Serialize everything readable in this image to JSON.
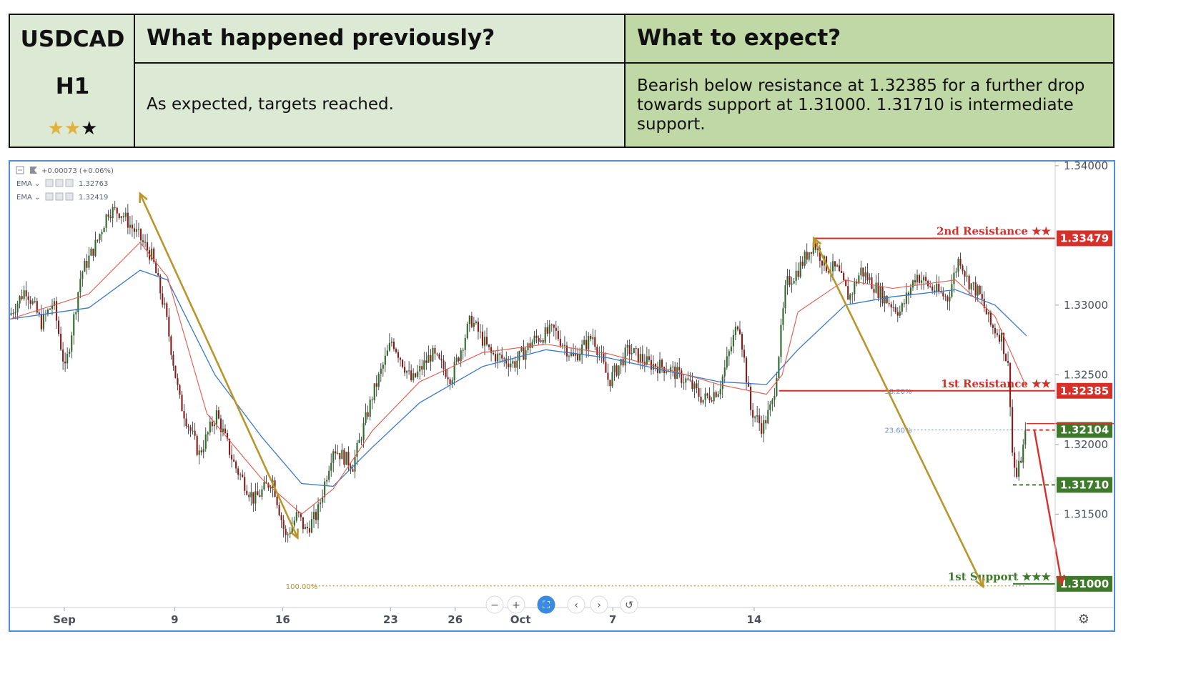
{
  "header": {
    "symbol": "USDCAD",
    "timeframe": "H1",
    "rating_filled": 2,
    "rating_total": 3,
    "previous_title": "What happened previously?",
    "expect_title": "What to expect?",
    "previous_text": "As expected, targets reached.",
    "expect_text": "Bearish below resistance at 1.32385 for a further drop towards support at 1.31000. 1.31710 is intermediate support."
  },
  "legend": {
    "change": "+0.00073 (+0.06%)",
    "ema1_label": "EMA",
    "ema1_value": "1.32763",
    "ema2_label": "EMA",
    "ema2_value": "1.32419"
  },
  "colors": {
    "bull": "#2e6b2a",
    "bear": "#8b1a1a",
    "ema_slow": "#3a78c8",
    "ema_fast": "#e05a4a",
    "resistance": "#d6302a",
    "support": "#3d7a2a",
    "trend_arrow": "#b8962a",
    "fib_blue": "#6a8fc8",
    "border": "#4e8fd8"
  },
  "chart_data": {
    "type": "candlestick",
    "symbol": "USDCAD",
    "timeframe": "H1",
    "ylim": [
      1.3083,
      1.3403
    ],
    "y_ticks": [
      "1.34000",
      "1.33000",
      "1.32500",
      "1.32000",
      "1.31500"
    ],
    "x_ticks": [
      "Sep",
      "9",
      "16",
      "23",
      "26",
      "Oct",
      "7",
      "14"
    ],
    "price_path": [
      [
        0,
        1.3293
      ],
      [
        0.02,
        1.3312
      ],
      [
        0.04,
        1.3287
      ],
      [
        0.055,
        1.3302
      ],
      [
        0.07,
        1.3253
      ],
      [
        0.09,
        1.3322
      ],
      [
        0.11,
        1.3345
      ],
      [
        0.125,
        1.3368
      ],
      [
        0.14,
        1.3367
      ],
      [
        0.165,
        1.3348
      ],
      [
        0.18,
        1.3335
      ],
      [
        0.197,
        1.3295
      ],
      [
        0.215,
        1.3232
      ],
      [
        0.24,
        1.3193
      ],
      [
        0.262,
        1.3222
      ],
      [
        0.285,
        1.3185
      ],
      [
        0.31,
        1.316
      ],
      [
        0.333,
        1.3175
      ],
      [
        0.35,
        1.3133
      ],
      [
        0.365,
        1.315
      ],
      [
        0.375,
        1.3138
      ],
      [
        0.39,
        1.315
      ],
      [
        0.41,
        1.3198
      ],
      [
        0.435,
        1.3185
      ],
      [
        0.46,
        1.3235
      ],
      [
        0.485,
        1.3275
      ],
      [
        0.51,
        1.3245
      ],
      [
        0.535,
        1.3265
      ],
      [
        0.56,
        1.3248
      ],
      [
        0.585,
        1.329
      ],
      [
        0.61,
        1.3265
      ],
      [
        0.64,
        1.3258
      ],
      [
        0.665,
        1.3275
      ],
      [
        0.69,
        1.3282
      ],
      [
        0.715,
        1.3262
      ],
      [
        0.74,
        1.3278
      ],
      [
        0.76,
        1.3245
      ],
      [
        0.785,
        1.3268
      ],
      [
        0.81,
        1.3258
      ],
      [
        0.835,
        1.3255
      ],
      [
        0.86,
        1.3245
      ],
      [
        0.88,
        1.3232
      ],
      [
        0.9,
        1.324
      ],
      [
        0.925,
        1.329
      ],
      [
        0.94,
        1.3225
      ],
      [
        0.955,
        1.3212
      ],
      [
        0.968,
        1.323
      ],
      [
        0.975,
        1.3262
      ],
      [
        0.985,
        1.3315
      ],
      [
        1.0,
        1.3325
      ],
      [
        1.01,
        1.3335
      ],
      [
        1.02,
        1.3345
      ],
      [
        1.035,
        1.3328
      ],
      [
        1.05,
        1.3325
      ],
      [
        1.065,
        1.3305
      ],
      [
        1.08,
        1.3325
      ],
      [
        1.095,
        1.3315
      ],
      [
        1.11,
        1.3305
      ],
      [
        1.13,
        1.3295
      ],
      [
        1.15,
        1.3322
      ],
      [
        1.17,
        1.3312
      ],
      [
        1.19,
        1.3305
      ],
      [
        1.205,
        1.3335
      ],
      [
        1.215,
        1.3318
      ],
      [
        1.23,
        1.3308
      ],
      [
        1.245,
        1.3285
      ],
      [
        1.258,
        1.3278
      ],
      [
        1.268,
        1.3252
      ],
      [
        1.272,
        1.3195
      ],
      [
        1.277,
        1.3175
      ],
      [
        1.285,
        1.3195
      ],
      [
        1.29,
        1.321
      ]
    ],
    "ema_slow": [
      [
        0,
        1.329
      ],
      [
        0.1,
        1.3298
      ],
      [
        0.165,
        1.3325
      ],
      [
        0.2,
        1.3318
      ],
      [
        0.26,
        1.325
      ],
      [
        0.32,
        1.3205
      ],
      [
        0.37,
        1.3172
      ],
      [
        0.41,
        1.317
      ],
      [
        0.46,
        1.3198
      ],
      [
        0.52,
        1.323
      ],
      [
        0.6,
        1.3256
      ],
      [
        0.68,
        1.3268
      ],
      [
        0.76,
        1.3262
      ],
      [
        0.84,
        1.3252
      ],
      [
        0.9,
        1.3245
      ],
      [
        0.96,
        1.3243
      ],
      [
        1.0,
        1.3268
      ],
      [
        1.06,
        1.33
      ],
      [
        1.12,
        1.3306
      ],
      [
        1.2,
        1.3311
      ],
      [
        1.25,
        1.33
      ],
      [
        1.29,
        1.3278
      ]
    ],
    "ema_fast": [
      [
        0,
        1.329
      ],
      [
        0.1,
        1.3308
      ],
      [
        0.165,
        1.3345
      ],
      [
        0.2,
        1.332
      ],
      [
        0.25,
        1.3222
      ],
      [
        0.32,
        1.3175
      ],
      [
        0.37,
        1.315
      ],
      [
        0.41,
        1.3168
      ],
      [
        0.46,
        1.321
      ],
      [
        0.52,
        1.3245
      ],
      [
        0.6,
        1.3266
      ],
      [
        0.68,
        1.3272
      ],
      [
        0.76,
        1.3265
      ],
      [
        0.84,
        1.3253
      ],
      [
        0.9,
        1.3243
      ],
      [
        0.96,
        1.3236
      ],
      [
        0.98,
        1.325
      ],
      [
        1.0,
        1.3295
      ],
      [
        1.06,
        1.3318
      ],
      [
        1.12,
        1.3312
      ],
      [
        1.2,
        1.3318
      ],
      [
        1.25,
        1.3292
      ],
      [
        1.29,
        1.3241
      ]
    ],
    "levels": [
      {
        "name": "2nd Resistance ★★",
        "value": 1.33479,
        "tag": "1.33479",
        "kind": "resistance",
        "x_start": 1.02
      },
      {
        "name": "1st Resistance ★★",
        "value": 1.32385,
        "tag": "1.32385",
        "kind": "resistance",
        "x_start": 0.976
      },
      {
        "name": "",
        "value": 1.32104,
        "tag": "1.32104",
        "kind": "pivot",
        "x_start": 1.29
      },
      {
        "name": "",
        "value": 1.3171,
        "tag": "1.31710",
        "kind": "support-intermediate",
        "x_start": 1.273
      },
      {
        "name": "1st Support ★★★",
        "value": 1.31,
        "tag": "1.31000",
        "kind": "support",
        "x_start": 1.273
      }
    ],
    "fibonacci": [
      {
        "label": "38.20%",
        "value": 1.32385
      },
      {
        "label": "23.60%",
        "value": 1.32104
      },
      {
        "label": "100.00%",
        "value": 1.30985
      }
    ],
    "trend_arrows": [
      {
        "from": [
          0.165,
          1.338
        ],
        "to": [
          0.365,
          1.3133
        ]
      },
      {
        "from": [
          1.02,
          1.3348
        ],
        "to": [
          1.235,
          1.3098
        ]
      }
    ],
    "forecast_arrow": {
      "from": [
        1.3,
        1.32104
      ],
      "to": [
        1.335,
        1.31
      ]
    },
    "nav_controls": [
      "−",
      "+",
      "⛶",
      "‹",
      "›",
      "↺"
    ],
    "settings_icon": "gear-icon"
  }
}
